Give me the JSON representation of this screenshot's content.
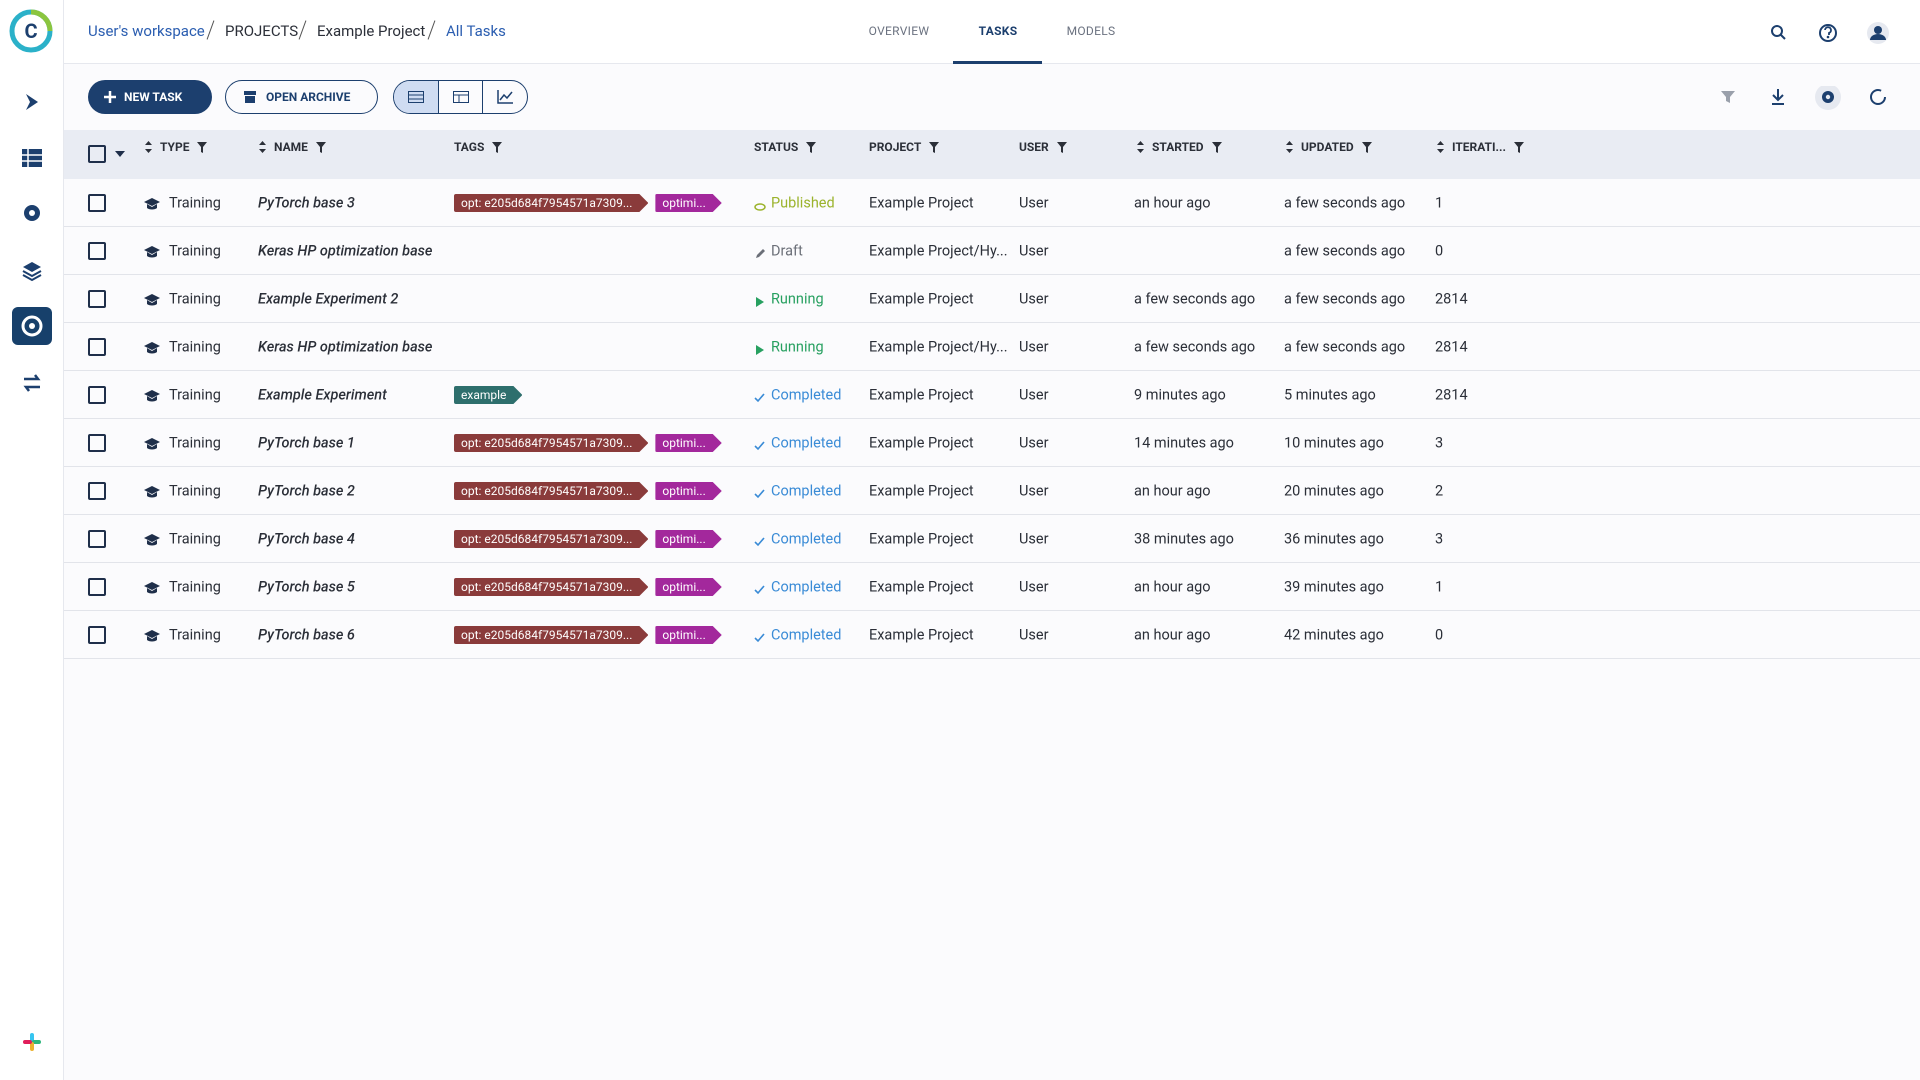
{
  "header": {
    "breadcrumbs": [
      "User's workspace",
      "PROJECTS",
      "Example Project",
      "All Tasks"
    ],
    "tabs": [
      "OVERVIEW",
      "TASKS",
      "MODELS"
    ],
    "active_tab": "TASKS"
  },
  "toolbar": {
    "buttons": [
      "NEW TASK",
      "OPEN ARCHIVE"
    ]
  },
  "table": {
    "columns": [
      "TYPE",
      "NAME",
      "TAGS",
      "STATUS",
      "PROJECT",
      "USER",
      "STARTED",
      "UPDATED",
      "ITERATI..."
    ],
    "rows": [
      {
        "type": "Training",
        "name": "PyTorch base 3",
        "tags": [
          {
            "text": "opt: e205d684f7954571a7309...",
            "color": "#8a3b3b"
          },
          {
            "text": "optimi...",
            "color": "#a3289c"
          }
        ],
        "status": {
          "label": "Published",
          "color": "#9bb32c",
          "icon": "cloud"
        },
        "project": "Example Project",
        "user": "User",
        "started": "an hour ago",
        "updated": "a few seconds ago",
        "iterations": 1
      },
      {
        "type": "Training",
        "name": "Keras HP optimization base",
        "tags": [],
        "status": {
          "label": "Draft",
          "color": "#6b6f78",
          "icon": "pencil"
        },
        "project": "Example Project/Hy...",
        "user": "User",
        "started": null,
        "updated": "a few seconds ago",
        "iterations": 0
      },
      {
        "type": "Training",
        "name": "Example Experiment 2",
        "tags": [],
        "status": {
          "label": "Running",
          "color": "#27a060",
          "icon": "play"
        },
        "project": "Example Project",
        "user": "User",
        "started": "a few seconds ago",
        "updated": "a few seconds ago",
        "iterations": 2814
      },
      {
        "type": "Training",
        "name": "Keras HP optimization base",
        "tags": [],
        "status": {
          "label": "Running",
          "color": "#27a060",
          "icon": "play"
        },
        "project": "Example Project/Hy...",
        "user": "User",
        "started": "a few seconds ago",
        "updated": "a few seconds ago",
        "iterations": 2814
      },
      {
        "type": "Training",
        "name": "Example Experiment",
        "tags": [
          {
            "text": "example",
            "color": "#2e6f6d"
          }
        ],
        "status": {
          "label": "Completed",
          "color": "#3a8bd6",
          "icon": "check"
        },
        "project": "Example Project",
        "user": "User",
        "started": "9 minutes ago",
        "updated": "5 minutes ago",
        "iterations": 2814
      },
      {
        "type": "Training",
        "name": "PyTorch base 1",
        "tags": [
          {
            "text": "opt: e205d684f7954571a7309...",
            "color": "#8a3b3b"
          },
          {
            "text": "optimi...",
            "color": "#a3289c"
          }
        ],
        "status": {
          "label": "Completed",
          "color": "#3a8bd6",
          "icon": "check"
        },
        "project": "Example Project",
        "user": "User",
        "started": "14 minutes ago",
        "updated": "10 minutes ago",
        "iterations": 3
      },
      {
        "type": "Training",
        "name": "PyTorch base 2",
        "tags": [
          {
            "text": "opt: e205d684f7954571a7309...",
            "color": "#8a3b3b"
          },
          {
            "text": "optimi...",
            "color": "#a3289c"
          }
        ],
        "status": {
          "label": "Completed",
          "color": "#3a8bd6",
          "icon": "check"
        },
        "project": "Example Project",
        "user": "User",
        "started": "an hour ago",
        "updated": "20 minutes ago",
        "iterations": 2
      },
      {
        "type": "Training",
        "name": "PyTorch base 4",
        "tags": [
          {
            "text": "opt: e205d684f7954571a7309...",
            "color": "#8a3b3b"
          },
          {
            "text": "optimi...",
            "color": "#a3289c"
          }
        ],
        "status": {
          "label": "Completed",
          "color": "#3a8bd6",
          "icon": "check"
        },
        "project": "Example Project",
        "user": "User",
        "started": "38 minutes ago",
        "updated": "36 minutes ago",
        "iterations": 3
      },
      {
        "type": "Training",
        "name": "PyTorch base 5",
        "tags": [
          {
            "text": "opt: e205d684f7954571a7309...",
            "color": "#8a3b3b"
          },
          {
            "text": "optimi...",
            "color": "#a3289c"
          }
        ],
        "status": {
          "label": "Completed",
          "color": "#3a8bd6",
          "icon": "check"
        },
        "project": "Example Project",
        "user": "User",
        "started": "an hour ago",
        "updated": "39 minutes ago",
        "iterations": 1
      },
      {
        "type": "Training",
        "name": "PyTorch base 6",
        "tags": [
          {
            "text": "opt: e205d684f7954571a7309...",
            "color": "#8a3b3b"
          },
          {
            "text": "optimi...",
            "color": "#a3289c"
          }
        ],
        "status": {
          "label": "Completed",
          "color": "#3a8bd6",
          "icon": "check"
        },
        "project": "Example Project",
        "user": "User",
        "started": "an hour ago",
        "updated": "42 minutes ago",
        "iterations": 0
      }
    ]
  }
}
